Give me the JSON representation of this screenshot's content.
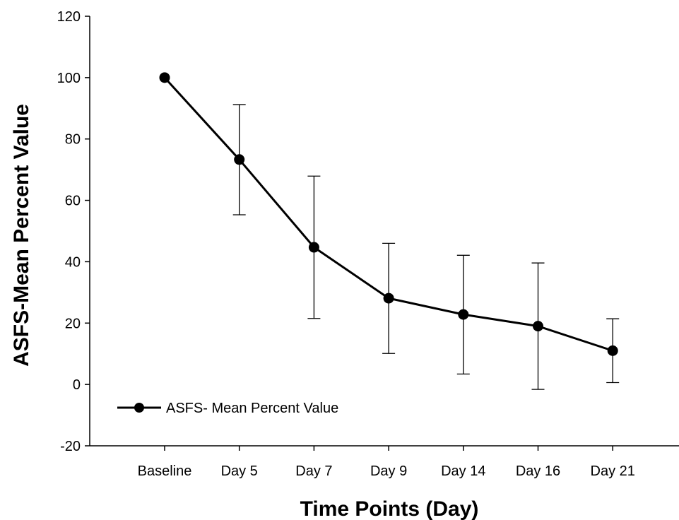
{
  "chart_data": {
    "type": "line",
    "title": "",
    "xlabel": "Time Points (Day)",
    "ylabel": "ASFS-Mean Percent  Value",
    "categories": [
      "Baseline",
      "Day 5",
      "Day 7",
      "Day 9",
      "Day 14",
      "Day 16",
      "Day 21"
    ],
    "ylim": [
      -20,
      120
    ],
    "yticks": [
      -20,
      0,
      20,
      40,
      60,
      80,
      100,
      120
    ],
    "grid": false,
    "legend_position": "bottom-left",
    "series": [
      {
        "name": "ASFS- Mean Percent Value",
        "values": [
          100,
          73.3,
          44.7,
          28.1,
          22.8,
          19.0,
          11.0
        ],
        "error_upper": [
          null,
          91.2,
          67.9,
          46.0,
          42.1,
          39.6,
          21.4
        ],
        "error_lower": [
          null,
          55.3,
          21.5,
          10.1,
          3.4,
          -1.6,
          0.6
        ],
        "color": "#000000"
      }
    ]
  }
}
